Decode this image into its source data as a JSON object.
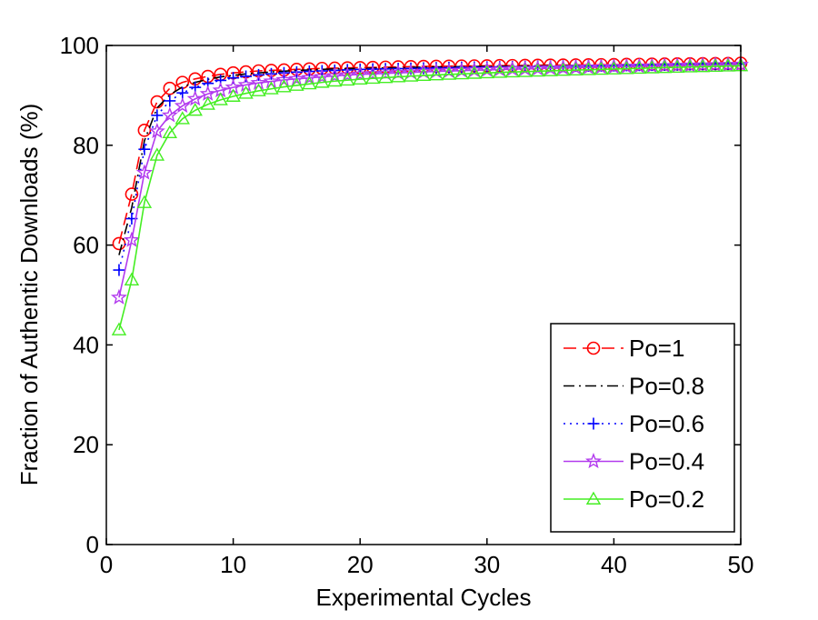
{
  "chart_data": {
    "type": "line",
    "title": "",
    "xlabel": "Experimental Cycles",
    "ylabel": "Fraction of Authentic Downloads (%)",
    "xlim": [
      0,
      50
    ],
    "ylim": [
      0,
      100
    ],
    "xticks": [
      0,
      10,
      20,
      30,
      40,
      50
    ],
    "yticks": [
      0,
      20,
      40,
      60,
      80,
      100
    ],
    "grid": false,
    "legend_position": "bottom-right",
    "x": [
      1,
      2,
      3,
      4,
      5,
      6,
      7,
      8,
      9,
      10,
      11,
      12,
      13,
      14,
      15,
      16,
      17,
      18,
      19,
      20,
      21,
      22,
      23,
      24,
      25,
      26,
      27,
      28,
      29,
      30,
      31,
      32,
      33,
      34,
      35,
      36,
      37,
      38,
      39,
      40,
      41,
      42,
      43,
      44,
      45,
      46,
      47,
      48,
      49,
      50
    ],
    "series": [
      {
        "name": "Po=1",
        "color": "#ff0000",
        "dash": "dashed",
        "marker": "circle",
        "values": [
          60.3,
          70.2,
          83.0,
          88.7,
          91.4,
          92.6,
          93.3,
          93.8,
          94.2,
          94.5,
          94.7,
          94.9,
          95.0,
          95.1,
          95.2,
          95.3,
          95.4,
          95.45,
          95.5,
          95.55,
          95.6,
          95.65,
          95.7,
          95.75,
          95.8,
          95.82,
          95.85,
          95.88,
          95.9,
          95.92,
          95.95,
          95.97,
          96.0,
          96.02,
          96.05,
          96.07,
          96.1,
          96.12,
          96.15,
          96.17,
          96.2,
          96.22,
          96.25,
          96.27,
          96.3,
          96.32,
          96.35,
          96.37,
          96.4,
          96.45
        ]
      },
      {
        "name": "Po=0.8",
        "color": "#000000",
        "dash": "dashdot",
        "marker": "none",
        "values": [
          58.0,
          67.5,
          80.9,
          87.5,
          90.1,
          91.7,
          92.6,
          93.2,
          93.7,
          94.0,
          94.3,
          94.5,
          94.7,
          94.85,
          95.0,
          95.1,
          95.2,
          95.3,
          95.35,
          95.4,
          95.45,
          95.5,
          95.55,
          95.6,
          95.65,
          95.7,
          95.72,
          95.75,
          95.78,
          95.8,
          95.83,
          95.86,
          95.89,
          95.92,
          95.95,
          95.98,
          96.0,
          96.03,
          96.06,
          96.09,
          96.12,
          96.15,
          96.18,
          96.21,
          96.24,
          96.27,
          96.3,
          96.33,
          96.36,
          96.4
        ]
      },
      {
        "name": "Po=0.6",
        "color": "#0000ff",
        "dash": "dotted",
        "marker": "plus",
        "values": [
          55.0,
          65.3,
          79.2,
          86.0,
          88.9,
          90.5,
          91.6,
          92.4,
          93.0,
          93.5,
          93.8,
          94.1,
          94.3,
          94.5,
          94.65,
          94.8,
          94.9,
          95.0,
          95.1,
          95.2,
          95.25,
          95.3,
          95.35,
          95.4,
          95.45,
          95.5,
          95.55,
          95.6,
          95.62,
          95.65,
          95.7,
          95.72,
          95.75,
          95.8,
          95.82,
          95.85,
          95.88,
          95.9,
          95.93,
          95.96,
          96.0,
          96.03,
          96.06,
          96.09,
          96.12,
          96.15,
          96.18,
          96.21,
          96.24,
          96.28
        ]
      },
      {
        "name": "Po=0.4",
        "color": "#b23aee",
        "dash": "solid",
        "marker": "star",
        "values": [
          49.5,
          61.0,
          74.5,
          82.8,
          86.0,
          87.9,
          89.3,
          90.3,
          91.0,
          91.6,
          92.1,
          92.5,
          92.8,
          93.1,
          93.3,
          93.5,
          93.7,
          93.9,
          94.05,
          94.2,
          94.3,
          94.4,
          94.5,
          94.6,
          94.7,
          94.8,
          94.87,
          94.95,
          95.02,
          95.1,
          95.17,
          95.24,
          95.3,
          95.36,
          95.42,
          95.48,
          95.54,
          95.6,
          95.65,
          95.7,
          95.75,
          95.8,
          95.85,
          95.9,
          95.95,
          96.0,
          96.04,
          96.08,
          96.12,
          96.16
        ]
      },
      {
        "name": "Po=0.2",
        "color": "#44ee22",
        "dash": "solid",
        "marker": "triangle",
        "values": [
          43.0,
          53.0,
          68.5,
          78.0,
          82.5,
          85.3,
          87.0,
          88.2,
          89.1,
          89.8,
          90.4,
          90.9,
          91.3,
          91.7,
          92.0,
          92.3,
          92.6,
          92.85,
          93.05,
          93.25,
          93.4,
          93.55,
          93.7,
          93.85,
          93.98,
          94.1,
          94.2,
          94.3,
          94.4,
          94.5,
          94.6,
          94.68,
          94.76,
          94.84,
          94.92,
          95.0,
          95.07,
          95.14,
          95.21,
          95.28,
          95.35,
          95.42,
          95.49,
          95.56,
          95.62,
          95.68,
          95.74,
          95.8,
          95.86,
          95.92
        ]
      }
    ]
  }
}
